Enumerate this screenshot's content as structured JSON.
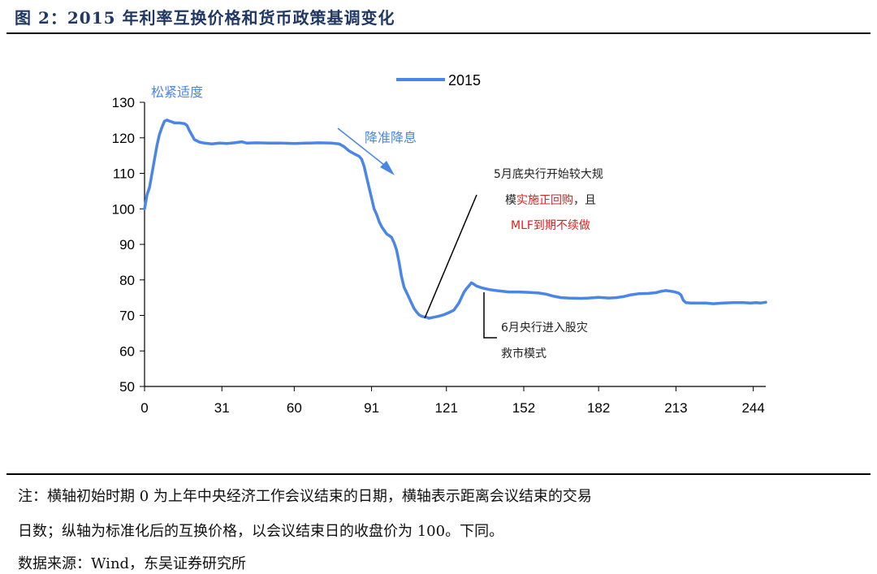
{
  "figure": {
    "title": "图 2：2015 年利率互换价格和货币政策基调变化"
  },
  "chart_data": {
    "type": "line",
    "title": "",
    "xlabel": "",
    "ylabel": "",
    "ylim": [
      50,
      130
    ],
    "xlim": [
      0,
      249
    ],
    "x_ticks": [
      0,
      31,
      60,
      91,
      121,
      152,
      182,
      213,
      244
    ],
    "y_ticks": [
      50,
      60,
      70,
      80,
      90,
      100,
      110,
      120,
      130
    ],
    "grid": false,
    "legend_position": "top",
    "series": [
      {
        "name": "2015",
        "color": "#4a86e8",
        "points": [
          [
            0,
            100
          ],
          [
            1,
            104
          ],
          [
            2,
            106
          ],
          [
            3,
            110
          ],
          [
            4,
            114
          ],
          [
            5,
            118
          ],
          [
            6,
            121
          ],
          [
            7,
            123
          ],
          [
            8,
            124.7
          ],
          [
            9,
            125
          ],
          [
            10,
            124.7
          ],
          [
            11,
            124.5
          ],
          [
            12,
            124.2
          ],
          [
            14,
            124.2
          ],
          [
            16,
            124
          ],
          [
            17,
            123.5
          ],
          [
            18,
            122
          ],
          [
            20,
            119.5
          ],
          [
            22,
            118.8
          ],
          [
            24,
            118.5
          ],
          [
            27,
            118.3
          ],
          [
            30,
            118.5
          ],
          [
            33,
            118.4
          ],
          [
            36,
            118.6
          ],
          [
            39,
            118.9
          ],
          [
            41,
            118.5
          ],
          [
            45,
            118.6
          ],
          [
            50,
            118.5
          ],
          [
            55,
            118.5
          ],
          [
            60,
            118.4
          ],
          [
            65,
            118.5
          ],
          [
            70,
            118.6
          ],
          [
            75,
            118.5
          ],
          [
            78,
            118.3
          ],
          [
            80,
            117.5
          ],
          [
            82,
            116.3
          ],
          [
            84,
            115.5
          ],
          [
            86,
            114.8
          ],
          [
            87,
            114
          ],
          [
            88,
            112
          ],
          [
            89,
            109
          ],
          [
            90,
            106
          ],
          [
            91,
            103
          ],
          [
            92,
            100
          ],
          [
            93,
            98.5
          ],
          [
            94,
            96.5
          ],
          [
            95,
            95
          ],
          [
            96,
            94
          ],
          [
            97,
            93
          ],
          [
            98,
            92.5
          ],
          [
            99,
            92
          ],
          [
            100,
            90.5
          ],
          [
            101,
            88.5
          ],
          [
            102,
            85
          ],
          [
            103,
            81
          ],
          [
            104,
            78
          ],
          [
            105,
            76.5
          ],
          [
            106,
            75
          ],
          [
            107,
            73.5
          ],
          [
            108,
            72
          ],
          [
            109,
            71
          ],
          [
            110,
            70.2
          ],
          [
            111,
            69.8
          ],
          [
            112,
            69.6
          ],
          [
            113,
            69.5
          ],
          [
            114,
            69.2
          ],
          [
            116,
            69.5
          ],
          [
            118,
            69.8
          ],
          [
            120,
            70.2
          ],
          [
            122,
            70.8
          ],
          [
            124,
            71.5
          ],
          [
            125,
            72.5
          ],
          [
            126,
            73.5
          ],
          [
            127,
            75
          ],
          [
            128,
            76.5
          ],
          [
            129,
            77.5
          ],
          [
            130,
            78.3
          ],
          [
            131,
            79.2
          ],
          [
            132,
            78.8
          ],
          [
            133,
            78.3
          ],
          [
            135,
            77.8
          ],
          [
            138,
            77.3
          ],
          [
            142,
            76.9
          ],
          [
            146,
            76.6
          ],
          [
            150,
            76.6
          ],
          [
            154,
            76.5
          ],
          [
            158,
            76.3
          ],
          [
            161,
            76
          ],
          [
            164,
            75.4
          ],
          [
            167,
            75
          ],
          [
            170,
            74.9
          ],
          [
            175,
            74.8
          ],
          [
            178,
            74.9
          ],
          [
            182,
            75.1
          ],
          [
            186,
            74.9
          ],
          [
            189,
            75
          ],
          [
            192,
            75.3
          ],
          [
            195,
            75.8
          ],
          [
            198,
            76.1
          ],
          [
            202,
            76.2
          ],
          [
            205,
            76.4
          ],
          [
            207,
            76.8
          ],
          [
            209,
            77
          ],
          [
            212,
            76.7
          ],
          [
            214,
            76.3
          ],
          [
            215,
            75.8
          ],
          [
            216,
            74.2
          ],
          [
            217,
            73.6
          ],
          [
            219,
            73.5
          ],
          [
            222,
            73.5
          ],
          [
            225,
            73.5
          ],
          [
            228,
            73.3
          ],
          [
            232,
            73.5
          ],
          [
            236,
            73.6
          ],
          [
            240,
            73.6
          ],
          [
            243,
            73.5
          ],
          [
            245,
            73.6
          ],
          [
            247,
            73.5
          ],
          [
            249,
            73.7
          ]
        ]
      }
    ],
    "annotations": {
      "tightness_label": "松紧适度",
      "easing_label": "降准降息",
      "may_line1": "5月底央行开始较大规",
      "may_line2_prefix": "模",
      "may_line2_red": "实施正回购",
      "may_line2_suffix": "，且",
      "may_line3_red": "MLF到期不续做",
      "june_line1": "6月央行进入股灾",
      "june_line2": "救市模式"
    }
  },
  "notes": {
    "line1": "注：横轴初始时期 0 为上年中央经济工作会议结束的日期，横轴表示距离会议结束的交易",
    "line2": "日数；纵轴为标准化后的互换价格，以会议结束日的收盘价为 100。下同。",
    "source": "数据来源：Wind，东吴证券研究所"
  }
}
